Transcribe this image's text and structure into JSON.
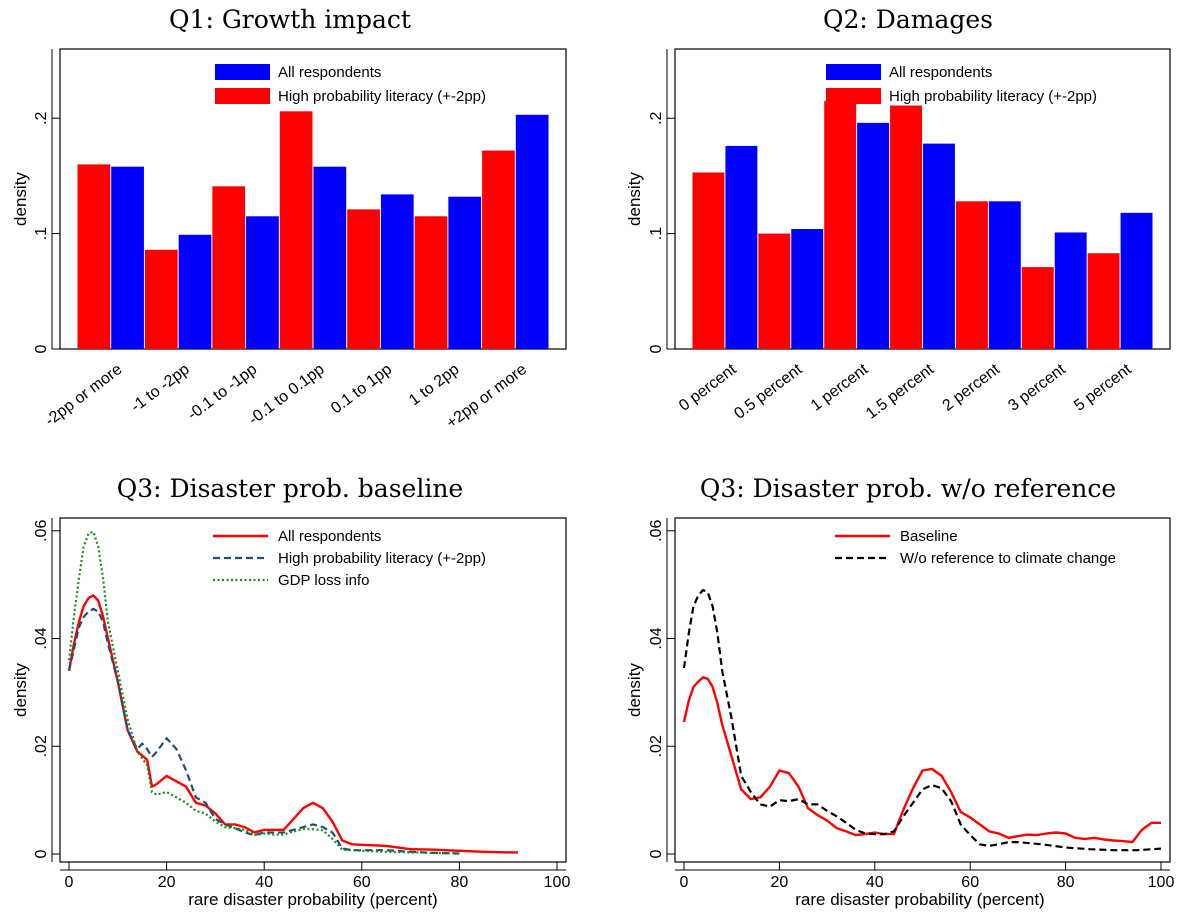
{
  "chart_data": [
    {
      "type": "bar",
      "title": "Q1: Growth impact",
      "xlabel": "",
      "ylabel": "density",
      "ylim": [
        0,
        0.26
      ],
      "yticks": [
        0,
        0.1,
        0.2
      ],
      "ytick_labels": [
        "0",
        ".1",
        ".2"
      ],
      "grid": false,
      "legend_position": "top-right",
      "categories": [
        "-2pp or more",
        "-1 to -2pp",
        "-0.1 to -1pp",
        "-0.1 to 0.1pp",
        "0.1 to 1pp",
        "1 to 2pp",
        "+2pp or more"
      ],
      "series": [
        {
          "name": "All respondents",
          "color": "#0000ff",
          "values": [
            0.158,
            0.099,
            0.115,
            0.158,
            0.134,
            0.132,
            0.203
          ]
        },
        {
          "name": "High probability literacy (+-2pp)",
          "color": "#ff0000",
          "values": [
            0.16,
            0.086,
            0.141,
            0.206,
            0.121,
            0.115,
            0.172
          ]
        }
      ]
    },
    {
      "type": "bar",
      "title": "Q2: Damages",
      "xlabel": "",
      "ylabel": "density",
      "ylim": [
        0,
        0.26
      ],
      "yticks": [
        0,
        0.1,
        0.2
      ],
      "ytick_labels": [
        "0",
        ".1",
        ".2"
      ],
      "grid": false,
      "legend_position": "top-right",
      "categories": [
        "0 percent",
        "0.5 percent",
        "1 percent",
        "1.5 percent",
        "2 percent",
        "3 percent",
        "5 percent"
      ],
      "series": [
        {
          "name": "All respondents",
          "color": "#0000ff",
          "values": [
            0.176,
            0.104,
            0.196,
            0.178,
            0.128,
            0.101,
            0.118
          ]
        },
        {
          "name": "High probability literacy (+-2pp)",
          "color": "#ff0000",
          "values": [
            0.153,
            0.1,
            0.215,
            0.211,
            0.128,
            0.071,
            0.083
          ]
        }
      ]
    },
    {
      "type": "line",
      "title": "Q3: Disaster prob. baseline",
      "xlabel": "rare disaster probability (percent)",
      "ylabel": "density",
      "xlim": [
        0,
        100
      ],
      "ylim": [
        0,
        0.062
      ],
      "xticks": [
        0,
        20,
        40,
        60,
        80,
        100
      ],
      "yticks": [
        0,
        0.02,
        0.04,
        0.06
      ],
      "ytick_labels": [
        "0",
        ".02",
        ".04",
        ".06"
      ],
      "grid": false,
      "legend_position": "top-right",
      "series": [
        {
          "name": "All respondents",
          "color": "#ff0000",
          "style": "solid",
          "x": [
            0,
            1,
            2,
            3,
            4,
            5,
            6,
            7,
            8,
            10,
            12,
            14,
            16,
            17,
            18,
            20,
            22,
            24,
            26,
            28,
            30,
            32,
            34,
            36,
            38,
            40,
            42,
            44,
            46,
            48,
            50,
            52,
            54,
            56,
            58,
            60,
            65,
            70,
            75,
            80,
            85,
            90,
            92
          ],
          "y": [
            0.034,
            0.039,
            0.043,
            0.046,
            0.0475,
            0.048,
            0.047,
            0.044,
            0.04,
            0.032,
            0.023,
            0.019,
            0.0175,
            0.0125,
            0.013,
            0.0145,
            0.0135,
            0.0125,
            0.0095,
            0.009,
            0.0075,
            0.0055,
            0.0055,
            0.005,
            0.004,
            0.0045,
            0.0045,
            0.0045,
            0.0065,
            0.0085,
            0.0095,
            0.0085,
            0.006,
            0.0025,
            0.0018,
            0.0017,
            0.0015,
            0.0009,
            0.0008,
            0.0006,
            0.0004,
            0.0003,
            0.0003
          ]
        },
        {
          "name": "High probability literacy (+-2pp)",
          "color": "#1f4e79",
          "style": "dashed",
          "x": [
            0,
            1,
            2,
            3,
            4,
            5,
            6,
            7,
            8,
            10,
            12,
            14,
            15,
            16,
            17,
            18,
            20,
            22,
            24,
            26,
            28,
            30,
            32,
            34,
            36,
            38,
            40,
            42,
            44,
            46,
            48,
            50,
            52,
            54,
            56,
            58,
            60,
            65,
            70,
            75,
            80
          ],
          "y": [
            0.034,
            0.038,
            0.042,
            0.044,
            0.045,
            0.0455,
            0.045,
            0.043,
            0.039,
            0.032,
            0.023,
            0.0195,
            0.0205,
            0.0195,
            0.018,
            0.019,
            0.0215,
            0.0195,
            0.0155,
            0.0105,
            0.0095,
            0.0065,
            0.0055,
            0.0048,
            0.004,
            0.0035,
            0.004,
            0.004,
            0.004,
            0.0045,
            0.005,
            0.0055,
            0.005,
            0.004,
            0.001,
            0.0007,
            0.0007,
            0.0007,
            0.0004,
            0.0002,
            0.0001
          ]
        },
        {
          "name": "GDP loss info",
          "color": "#1a8a1a",
          "style": "dotted",
          "x": [
            0,
            1,
            2,
            3,
            4,
            5,
            6,
            7,
            8,
            10,
            12,
            14,
            16,
            17,
            18,
            20,
            22,
            24,
            26,
            28,
            30,
            32,
            34,
            36,
            38,
            40,
            42,
            44,
            46,
            48,
            50,
            52,
            54,
            56,
            58,
            60,
            65,
            70,
            75,
            80
          ],
          "y": [
            0.036,
            0.044,
            0.051,
            0.057,
            0.0595,
            0.0598,
            0.057,
            0.051,
            0.043,
            0.034,
            0.025,
            0.019,
            0.0165,
            0.0115,
            0.011,
            0.0115,
            0.0105,
            0.0095,
            0.008,
            0.0075,
            0.006,
            0.005,
            0.0048,
            0.0045,
            0.0035,
            0.0038,
            0.0036,
            0.0036,
            0.0042,
            0.0046,
            0.0046,
            0.0044,
            0.0028,
            0.0008,
            0.0007,
            0.0006,
            0.0004,
            0.0003,
            0.0002,
            0.0001
          ]
        }
      ]
    },
    {
      "type": "line",
      "title": "Q3: Disaster prob. w/o reference",
      "xlabel": "rare disaster probability (percent)",
      "ylabel": "density",
      "xlim": [
        0,
        100
      ],
      "ylim": [
        0,
        0.062
      ],
      "xticks": [
        0,
        20,
        40,
        60,
        80,
        100
      ],
      "yticks": [
        0,
        0.02,
        0.04,
        0.06
      ],
      "ytick_labels": [
        "0",
        ".02",
        ".04",
        ".06"
      ],
      "grid": false,
      "legend_position": "top-right",
      "series": [
        {
          "name": "Baseline",
          "color": "#ff0000",
          "style": "solid",
          "x": [
            0,
            1,
            2,
            3,
            4,
            5,
            6,
            7,
            8,
            10,
            12,
            14,
            16,
            18,
            20,
            22,
            24,
            26,
            28,
            30,
            32,
            34,
            36,
            38,
            40,
            42,
            44,
            46,
            48,
            50,
            52,
            54,
            56,
            58,
            60,
            62,
            64,
            66,
            68,
            70,
            72,
            74,
            76,
            78,
            80,
            82,
            84,
            86,
            88,
            90,
            92,
            94,
            96,
            98,
            100
          ],
          "y": [
            0.0245,
            0.0285,
            0.031,
            0.032,
            0.0328,
            0.0325,
            0.031,
            0.028,
            0.024,
            0.018,
            0.012,
            0.0102,
            0.0105,
            0.0125,
            0.0155,
            0.015,
            0.0125,
            0.0085,
            0.0072,
            0.0062,
            0.0048,
            0.0042,
            0.0035,
            0.0037,
            0.004,
            0.0037,
            0.0037,
            0.0082,
            0.0122,
            0.0155,
            0.0158,
            0.0145,
            0.0115,
            0.0078,
            0.0068,
            0.0055,
            0.0042,
            0.0038,
            0.003,
            0.0033,
            0.0036,
            0.0035,
            0.0038,
            0.004,
            0.0038,
            0.003,
            0.0028,
            0.003,
            0.0027,
            0.0025,
            0.0024,
            0.0022,
            0.0045,
            0.0058,
            0.0058
          ]
        },
        {
          "name": "W/o reference to climate change",
          "color": "#000000",
          "style": "dashed",
          "x": [
            0,
            1,
            2,
            3,
            4,
            5,
            6,
            7,
            8,
            10,
            12,
            14,
            16,
            18,
            20,
            22,
            24,
            26,
            28,
            30,
            32,
            34,
            36,
            38,
            40,
            42,
            44,
            46,
            48,
            50,
            52,
            54,
            56,
            58,
            60,
            62,
            64,
            66,
            68,
            70,
            75,
            80,
            85,
            90,
            95,
            100
          ],
          "y": [
            0.0345,
            0.041,
            0.046,
            0.048,
            0.049,
            0.0485,
            0.046,
            0.041,
            0.034,
            0.025,
            0.0145,
            0.0115,
            0.0092,
            0.0088,
            0.01,
            0.0098,
            0.0102,
            0.0092,
            0.0092,
            0.008,
            0.007,
            0.0058,
            0.0045,
            0.0038,
            0.0037,
            0.0037,
            0.0042,
            0.007,
            0.0095,
            0.012,
            0.0128,
            0.0122,
            0.0098,
            0.0055,
            0.0035,
            0.0018,
            0.0015,
            0.0018,
            0.0022,
            0.0022,
            0.0018,
            0.0012,
            0.0009,
            0.0007,
            0.0007,
            0.001
          ]
        }
      ]
    }
  ]
}
